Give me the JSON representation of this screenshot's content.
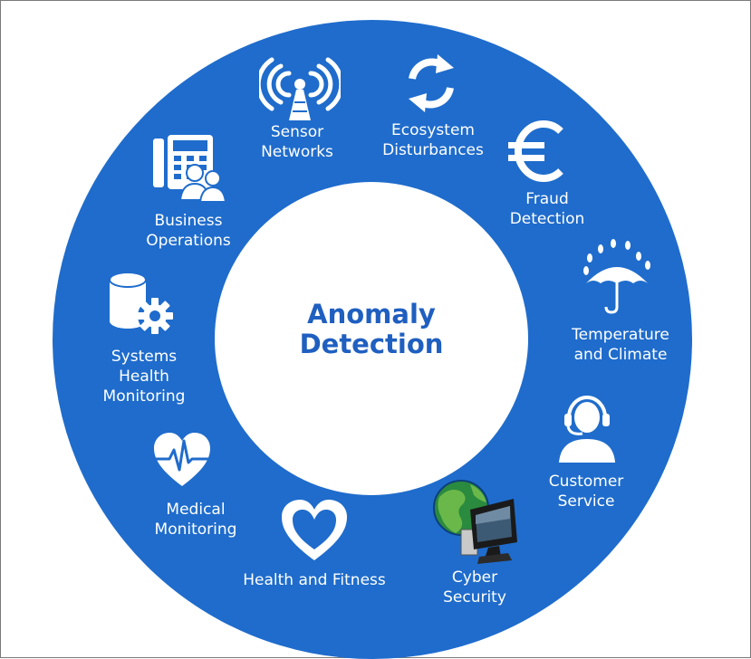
{
  "center": {
    "line1": "Anomaly",
    "line2": "Detection"
  },
  "segments": [
    {
      "label": "Sensor\nNetworks",
      "icon": "antenna-icon"
    },
    {
      "label": "Ecosystem\nDisturbances",
      "icon": "cycle-arrows-icon"
    },
    {
      "label": "Fraud\nDetection",
      "icon": "euro-icon"
    },
    {
      "label": "Temperature\nand Climate",
      "icon": "umbrella-rain-icon"
    },
    {
      "label": "Customer\nService",
      "icon": "headset-agent-icon"
    },
    {
      "label": "Cyber\nSecurity",
      "icon": "globe-monitor-icon"
    },
    {
      "label": "Health and Fitness",
      "icon": "heart-icon"
    },
    {
      "label": "Medical\nMonitoring",
      "icon": "heartbeat-icon"
    },
    {
      "label": "Systems\nHealth\nMonitoring",
      "icon": "database-gear-icon"
    },
    {
      "label": "Business\nOperations",
      "icon": "phone-people-icon"
    }
  ],
  "colors": {
    "ring": "#1f6ccc",
    "center_text": "#1f5fc0",
    "label_text": "#ffffff",
    "icon_light": "#ffffff"
  }
}
